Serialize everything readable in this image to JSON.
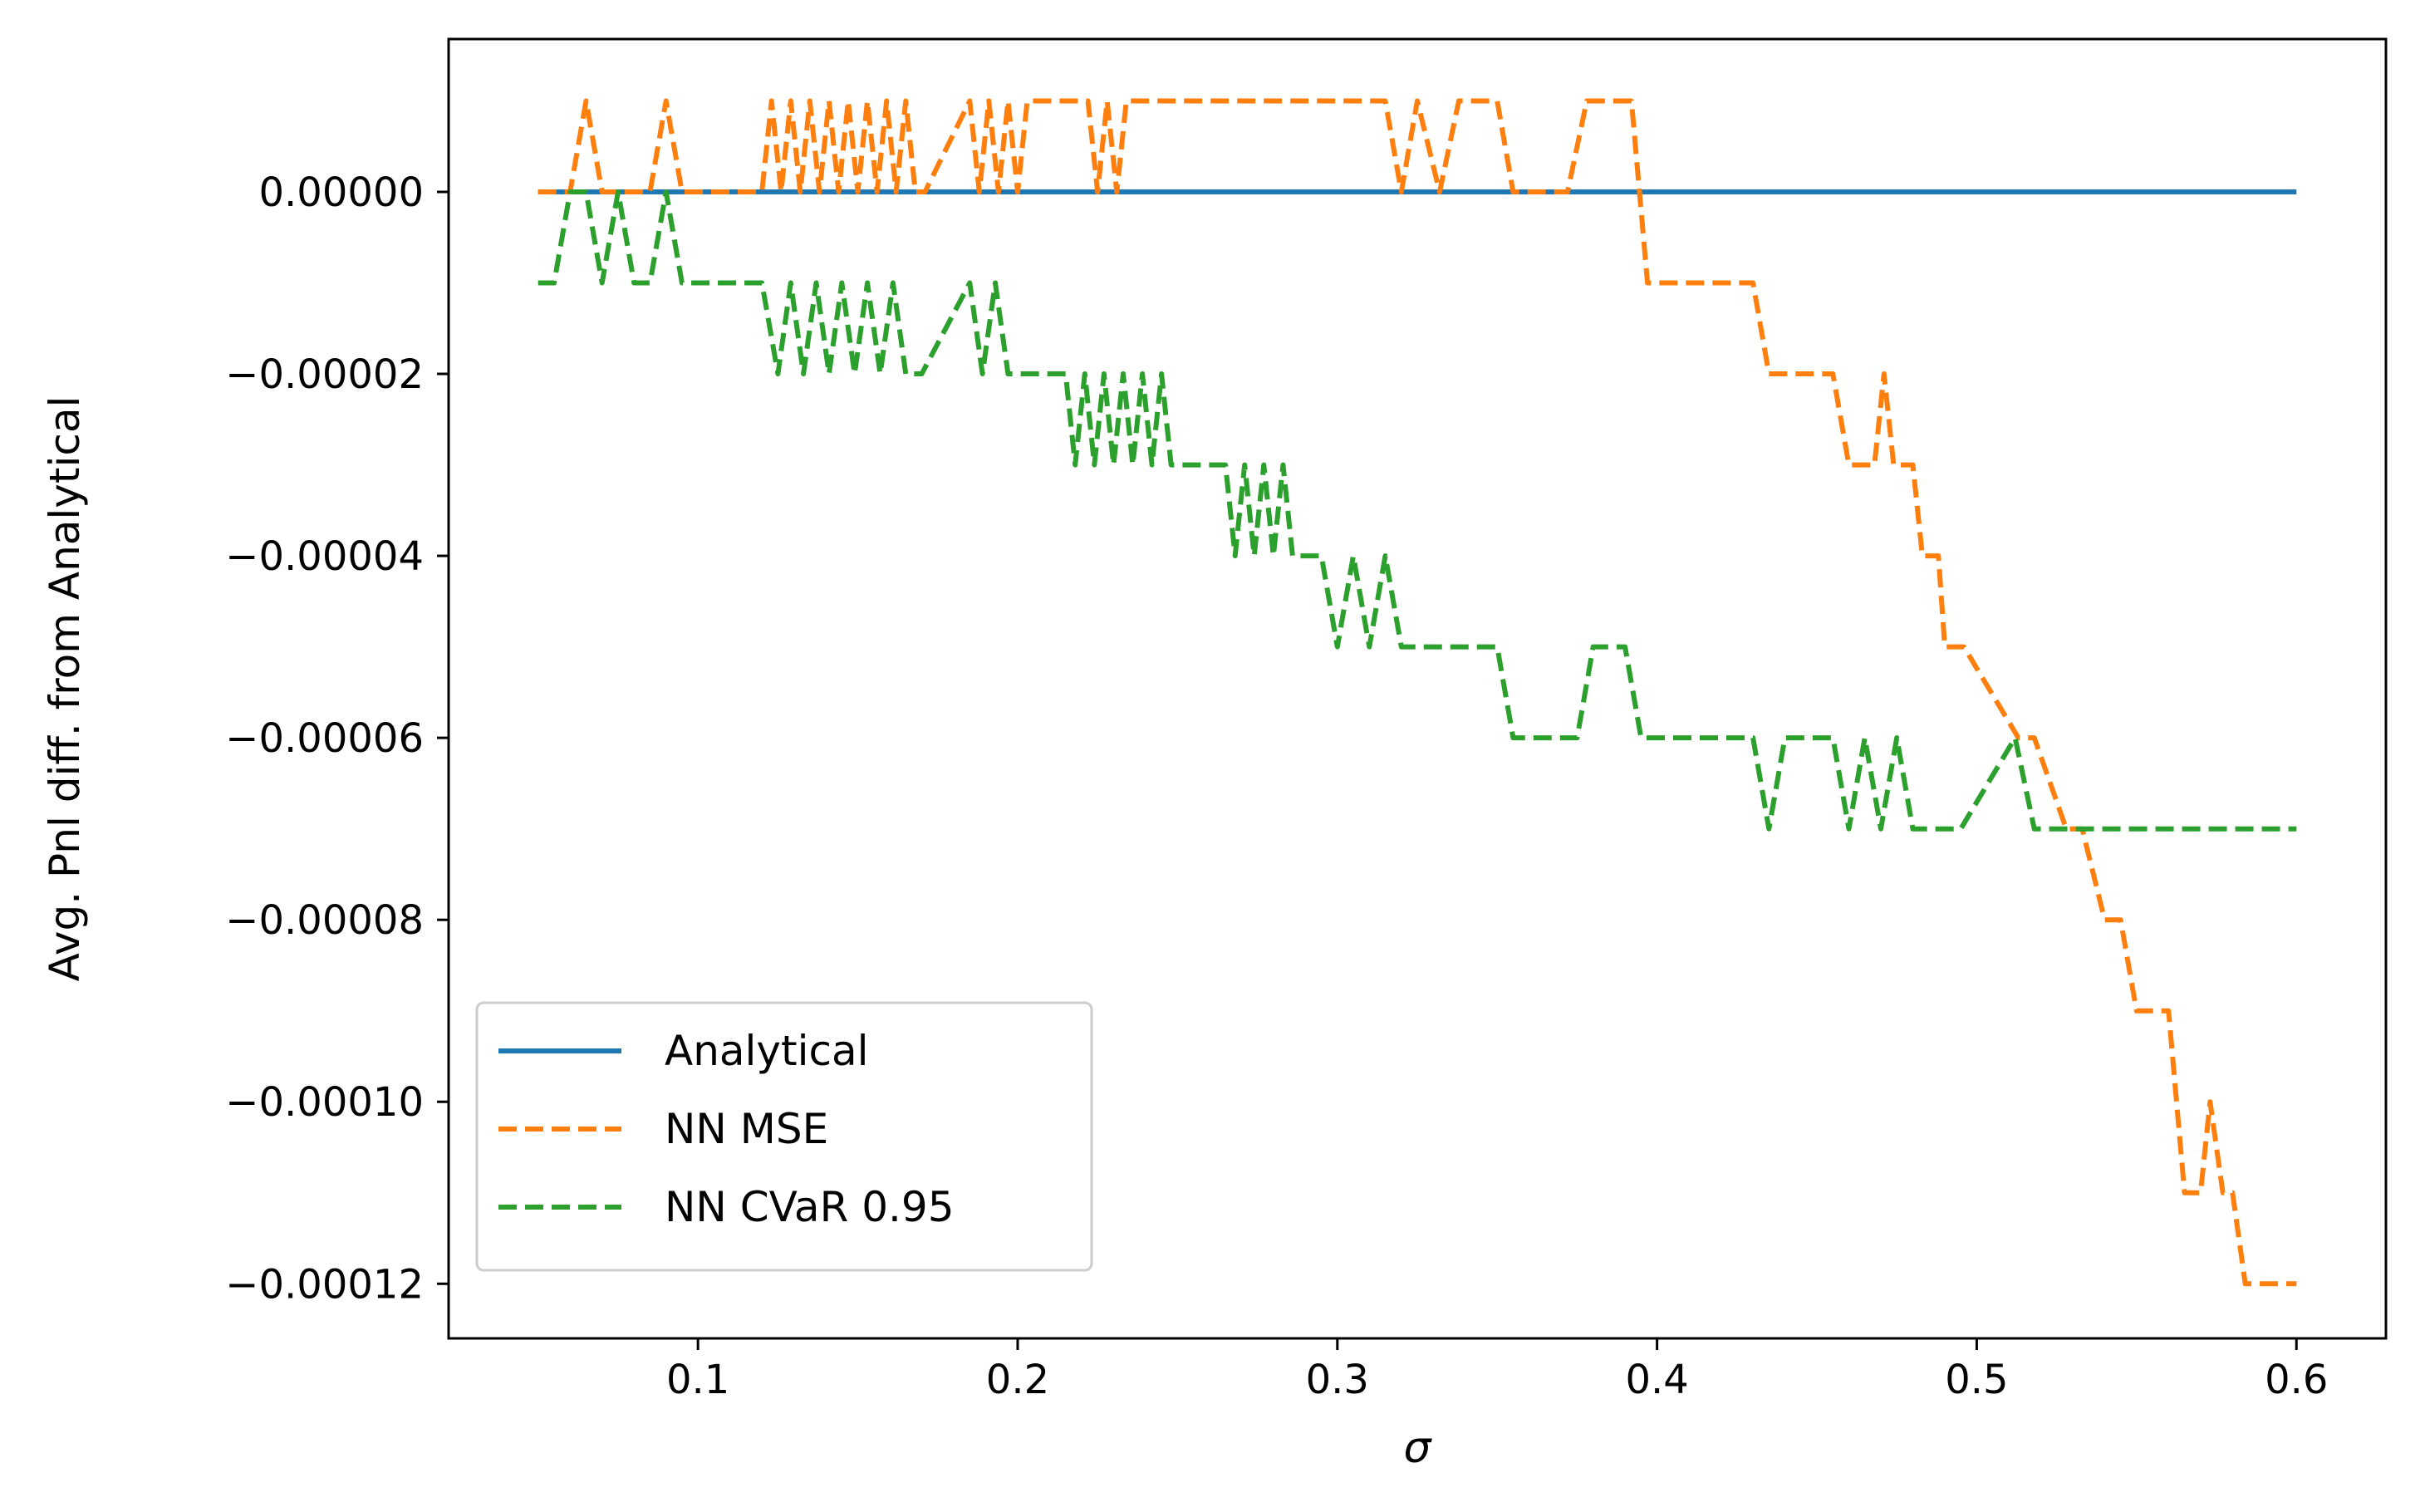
{
  "chart_data": {
    "type": "line",
    "xlabel": "σ",
    "ylabel": "Avg. Pnl diff. from Analytical",
    "xlim": [
      0.022,
      0.628
    ],
    "ylim": [
      -0.000126,
      1.68e-05
    ],
    "xticks": [
      0.1,
      0.2,
      0.3,
      0.4,
      0.5,
      0.6
    ],
    "xtick_labels": [
      "0.1",
      "0.2",
      "0.3",
      "0.4",
      "0.5",
      "0.6"
    ],
    "yticks": [
      0,
      -2e-05,
      -4e-05,
      -6e-05,
      -8e-05,
      -0.0001,
      -0.00012
    ],
    "ytick_labels": [
      "0.00000",
      "−0.00002",
      "−0.00004",
      "−0.00006",
      "−0.00008",
      "−0.00010",
      "−0.00012"
    ],
    "grid": false,
    "legend_position": "lower-left",
    "series": [
      {
        "name": "Analytical",
        "color": "#1f77b4",
        "style": "solid",
        "x": [
          0.05,
          0.6
        ],
        "y": [
          0,
          0
        ]
      },
      {
        "name": "NN MSE",
        "color": "#ff7f0e",
        "style": "dashed",
        "x": [
          0.05,
          0.06,
          0.065,
          0.07,
          0.085,
          0.09,
          0.095,
          0.12,
          0.123,
          0.126,
          0.129,
          0.132,
          0.135,
          0.138,
          0.141,
          0.144,
          0.147,
          0.15,
          0.153,
          0.156,
          0.159,
          0.162,
          0.165,
          0.168,
          0.171,
          0.185,
          0.188,
          0.191,
          0.194,
          0.197,
          0.2,
          0.203,
          0.206,
          0.222,
          0.225,
          0.228,
          0.231,
          0.234,
          0.315,
          0.32,
          0.325,
          0.332,
          0.338,
          0.35,
          0.355,
          0.372,
          0.378,
          0.392,
          0.397,
          0.43,
          0.435,
          0.455,
          0.46,
          0.468,
          0.471,
          0.474,
          0.48,
          0.483,
          0.488,
          0.49,
          0.493,
          0.496,
          0.513,
          0.518,
          0.528,
          0.533,
          0.54,
          0.545,
          0.55,
          0.555,
          0.56,
          0.565,
          0.57,
          0.573,
          0.577,
          0.58,
          0.584,
          0.586,
          0.59,
          0.593,
          0.6
        ],
        "y": [
          0,
          0,
          1e-05,
          0,
          0,
          1e-05,
          0,
          0,
          1e-05,
          0,
          1e-05,
          0,
          1e-05,
          0,
          1e-05,
          0,
          1e-05,
          0,
          1e-05,
          0,
          1e-05,
          0,
          1e-05,
          0,
          0,
          1e-05,
          0,
          1e-05,
          0,
          1e-05,
          0,
          1e-05,
          1e-05,
          1e-05,
          0,
          1e-05,
          0,
          1e-05,
          1e-05,
          0,
          1e-05,
          0,
          1e-05,
          1e-05,
          0,
          0,
          1e-05,
          1e-05,
          -1e-05,
          -1e-05,
          -2e-05,
          -2e-05,
          -3e-05,
          -3e-05,
          -2e-05,
          -3e-05,
          -3e-05,
          -4e-05,
          -4e-05,
          -5e-05,
          -5e-05,
          -5e-05,
          -6e-05,
          -6e-05,
          -7e-05,
          -7e-05,
          -8e-05,
          -8e-05,
          -9e-05,
          -9e-05,
          -9e-05,
          -0.00011,
          -0.00011,
          -0.0001,
          -0.00011,
          -0.00011,
          -0.00012,
          -0.00012,
          -0.00012,
          -0.00012,
          -0.00012
        ]
      },
      {
        "name": "NN CVaR 0.95",
        "color": "#2ca02c",
        "style": "dashed",
        "x": [
          0.05,
          0.055,
          0.06,
          0.065,
          0.07,
          0.075,
          0.08,
          0.085,
          0.09,
          0.095,
          0.12,
          0.125,
          0.129,
          0.133,
          0.137,
          0.141,
          0.145,
          0.149,
          0.153,
          0.157,
          0.161,
          0.165,
          0.17,
          0.185,
          0.189,
          0.193,
          0.197,
          0.2,
          0.215,
          0.218,
          0.221,
          0.224,
          0.227,
          0.23,
          0.233,
          0.236,
          0.239,
          0.242,
          0.245,
          0.248,
          0.25,
          0.265,
          0.268,
          0.271,
          0.274,
          0.277,
          0.28,
          0.283,
          0.286,
          0.295,
          0.3,
          0.305,
          0.31,
          0.315,
          0.32,
          0.325,
          0.35,
          0.355,
          0.375,
          0.38,
          0.39,
          0.395,
          0.43,
          0.435,
          0.44,
          0.455,
          0.46,
          0.465,
          0.47,
          0.475,
          0.48,
          0.485,
          0.495,
          0.512,
          0.518,
          0.525,
          0.6
        ],
        "y": [
          -1e-05,
          -1e-05,
          0,
          0,
          -1e-05,
          0,
          -1e-05,
          -1e-05,
          0,
          -1e-05,
          -1e-05,
          -2e-05,
          -1e-05,
          -2e-05,
          -1e-05,
          -2e-05,
          -1e-05,
          -2e-05,
          -1e-05,
          -2e-05,
          -1e-05,
          -2e-05,
          -2e-05,
          -1e-05,
          -2e-05,
          -1e-05,
          -2e-05,
          -2e-05,
          -2e-05,
          -3e-05,
          -2e-05,
          -3e-05,
          -2e-05,
          -3e-05,
          -2e-05,
          -3e-05,
          -2e-05,
          -3e-05,
          -2e-05,
          -3e-05,
          -3e-05,
          -3e-05,
          -4e-05,
          -3e-05,
          -4e-05,
          -3e-05,
          -4e-05,
          -3e-05,
          -4e-05,
          -4e-05,
          -5e-05,
          -4e-05,
          -5e-05,
          -4e-05,
          -5e-05,
          -5e-05,
          -5e-05,
          -6e-05,
          -6e-05,
          -5e-05,
          -5e-05,
          -6e-05,
          -6e-05,
          -7e-05,
          -6e-05,
          -6e-05,
          -7e-05,
          -6e-05,
          -7e-05,
          -6e-05,
          -7e-05,
          -7e-05,
          -7e-05,
          -6e-05,
          -7e-05,
          -7e-05,
          -7e-05
        ]
      }
    ]
  }
}
